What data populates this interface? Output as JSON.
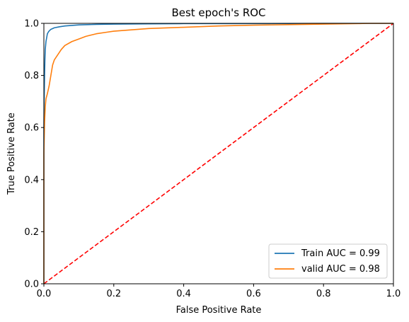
{
  "chart_data": {
    "type": "line",
    "title": "Best epoch's ROC",
    "xlabel": "False Positive Rate",
    "ylabel": "True Positive Rate",
    "xlim": [
      0,
      1
    ],
    "ylim": [
      0,
      1
    ],
    "grid": false,
    "legend_position": "lower-right",
    "x_ticks": [
      0.0,
      0.2,
      0.4,
      0.6,
      0.8,
      1.0
    ],
    "x_tick_labels": [
      "0.0",
      "0.2",
      "0.4",
      "0.6",
      "0.8",
      "1.0"
    ],
    "y_ticks": [
      0.0,
      0.2,
      0.4,
      0.6,
      0.8,
      1.0
    ],
    "y_tick_labels": [
      "0.0",
      "0.2",
      "0.4",
      "0.6",
      "0.8",
      "1.0"
    ],
    "series": [
      {
        "name": "Train AUC = 0.99",
        "color": "#1f77b4",
        "style": "solid",
        "x": [
          0.0,
          0.0,
          0.001,
          0.002,
          0.003,
          0.004,
          0.006,
          0.008,
          0.01,
          0.013,
          0.016,
          0.02,
          0.03,
          0.045,
          0.06,
          0.08,
          0.1,
          0.15,
          0.2,
          0.3,
          0.4,
          0.6,
          0.8,
          0.9,
          1.0
        ],
        "y": [
          0.0,
          0.6,
          0.72,
          0.8,
          0.86,
          0.9,
          0.93,
          0.945,
          0.96,
          0.967,
          0.972,
          0.977,
          0.983,
          0.987,
          0.99,
          0.992,
          0.994,
          0.996,
          0.997,
          0.998,
          0.999,
          0.999,
          1.0,
          1.0,
          1.0
        ]
      },
      {
        "name": "valid AUC = 0.98",
        "color": "#ff7f0e",
        "style": "solid",
        "x": [
          0.0,
          0.0,
          0.002,
          0.004,
          0.006,
          0.01,
          0.015,
          0.02,
          0.025,
          0.03,
          0.04,
          0.05,
          0.06,
          0.08,
          0.1,
          0.12,
          0.15,
          0.18,
          0.2,
          0.25,
          0.3,
          0.4,
          0.5,
          0.6,
          0.7,
          0.8,
          0.9,
          0.93,
          1.0
        ],
        "y": [
          0.0,
          0.5,
          0.62,
          0.68,
          0.71,
          0.73,
          0.76,
          0.8,
          0.84,
          0.86,
          0.88,
          0.9,
          0.915,
          0.93,
          0.94,
          0.95,
          0.96,
          0.966,
          0.97,
          0.975,
          0.98,
          0.985,
          0.99,
          0.993,
          0.995,
          0.997,
          0.999,
          1.0,
          1.0
        ]
      },
      {
        "name": "",
        "color": "#ff0000",
        "style": "dashed",
        "x": [
          0,
          1
        ],
        "y": [
          0,
          1
        ]
      }
    ]
  }
}
